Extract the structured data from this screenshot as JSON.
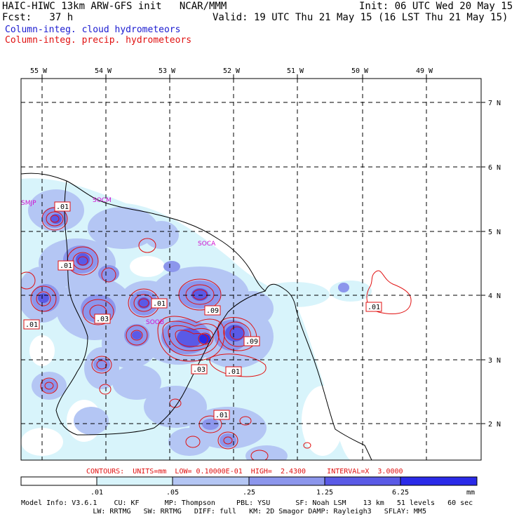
{
  "header": {
    "line1_left": "HAIC-HIWC 13km ARW-GFS init   NCAR/MMM",
    "line1_right": "Init: 06 UTC Wed 20 May 15",
    "line2_left": "Fcst:   37 h",
    "line2_right": "Valid: 19 UTC Thu 21 May 15 (16 LST Thu 21 May 15)",
    "field1": "Column-integ. cloud hydrometeors",
    "field2": "Column-integ. precip. hydrometeors"
  },
  "colors": {
    "cloud_title": "#1a1ad0",
    "precip_title": "#e01010",
    "shade_levels": [
      "#ffffff",
      "#d8f4fb",
      "#b4c6f4",
      "#8c96ec",
      "#5a5ae6",
      "#2a2ae8"
    ]
  },
  "map": {
    "lon_labels": [
      "55 W",
      "54 W",
      "53 W",
      "52 W",
      "51 W",
      "50 W",
      "49 W"
    ],
    "lat_labels": [
      "7 N",
      "6 N",
      "5 N",
      "4 N",
      "3 N",
      "2 N"
    ],
    "place_labels": [
      {
        "id": "smjp",
        "text": "SMJP"
      },
      {
        "id": "socm",
        "text": "SOCM"
      },
      {
        "id": "soca",
        "text": "SOCA"
      },
      {
        "id": "soob",
        "text": "SOOB"
      }
    ],
    "contour_labels": [
      {
        "text": ".01"
      },
      {
        "text": ".01"
      },
      {
        "text": ".01"
      },
      {
        "text": ".03"
      },
      {
        "text": ".01"
      },
      {
        "text": ".09"
      },
      {
        "text": ".09"
      },
      {
        "text": ".03"
      },
      {
        "text": ".01"
      },
      {
        "text": ".01"
      },
      {
        "text": ".01"
      }
    ]
  },
  "contour_info": {
    "text": "CONTOURS:  UNITS=mm  LOW= 0.10000E-01  HIGH=  2.4300     INTERVAL=X  3.0000"
  },
  "colorbar": {
    "labels": [
      ".01",
      ".05",
      ".25",
      "1.25",
      "6.25"
    ],
    "units": "mm"
  },
  "footer": {
    "line1": "Model Info: V3.6.1    CU: KF      MP: Thompson     PBL: YSU      SF: Noah LSM    13 km   51 levels   60 sec",
    "line2": "                 LW: RRTMG   SW: RRTMG   DIFF: full   KM: 2D Smagor DAMP: Rayleigh3   SFLAY: MM5"
  }
}
